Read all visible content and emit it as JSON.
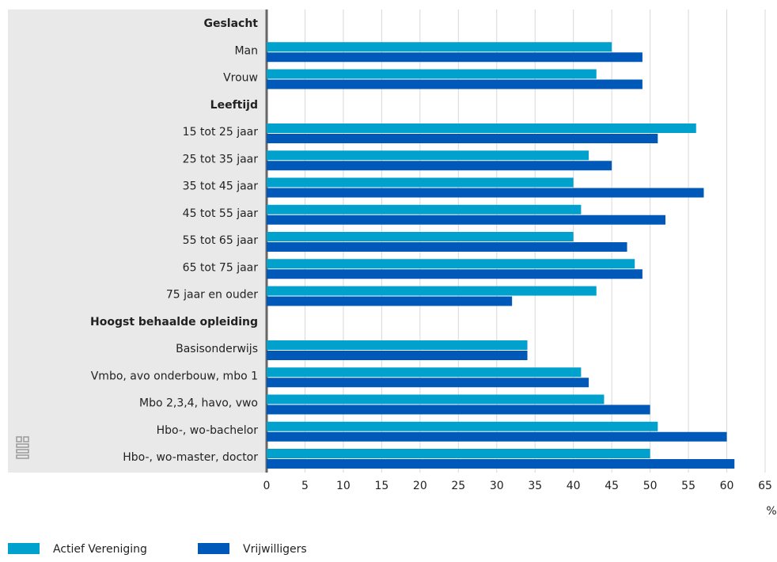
{
  "chart_data": {
    "type": "barh",
    "categories": [
      "Geslacht",
      "Man",
      "Vrouw",
      "Leeftijd",
      "15 tot 25 jaar",
      "25 tot 35 jaar",
      "35 tot 45 jaar",
      "45 tot 55 jaar",
      "55 tot 65 jaar",
      "65 tot 75 jaar",
      "75 jaar en ouder",
      "Hoogst behaalde opleiding",
      "Basisonderwijs",
      "Vmbo, avo onderbouw, mbo 1",
      "Mbo 2,3,4, havo, vwo",
      "Hbo-, wo-bachelor",
      "Hbo-, wo-master, doctor"
    ],
    "series": [
      {
        "name": "Actief Vereniging",
        "color": "#00a1cd",
        "values": [
          null,
          45,
          43,
          null,
          56,
          42,
          40,
          41,
          40,
          48,
          43,
          null,
          34,
          41,
          44,
          51,
          50
        ]
      },
      {
        "name": "Vrijwilligers",
        "color": "#0058b8",
        "values": [
          null,
          49,
          49,
          null,
          51,
          45,
          57,
          52,
          47,
          49,
          32,
          null,
          34,
          42,
          50,
          60,
          61
        ]
      }
    ],
    "xlim": [
      0,
      65
    ],
    "xticks": [
      0,
      5,
      10,
      15,
      20,
      25,
      30,
      35,
      40,
      45,
      50,
      55,
      60,
      65
    ],
    "x_unit": "%",
    "grid": true,
    "legend": "bottom-left"
  }
}
